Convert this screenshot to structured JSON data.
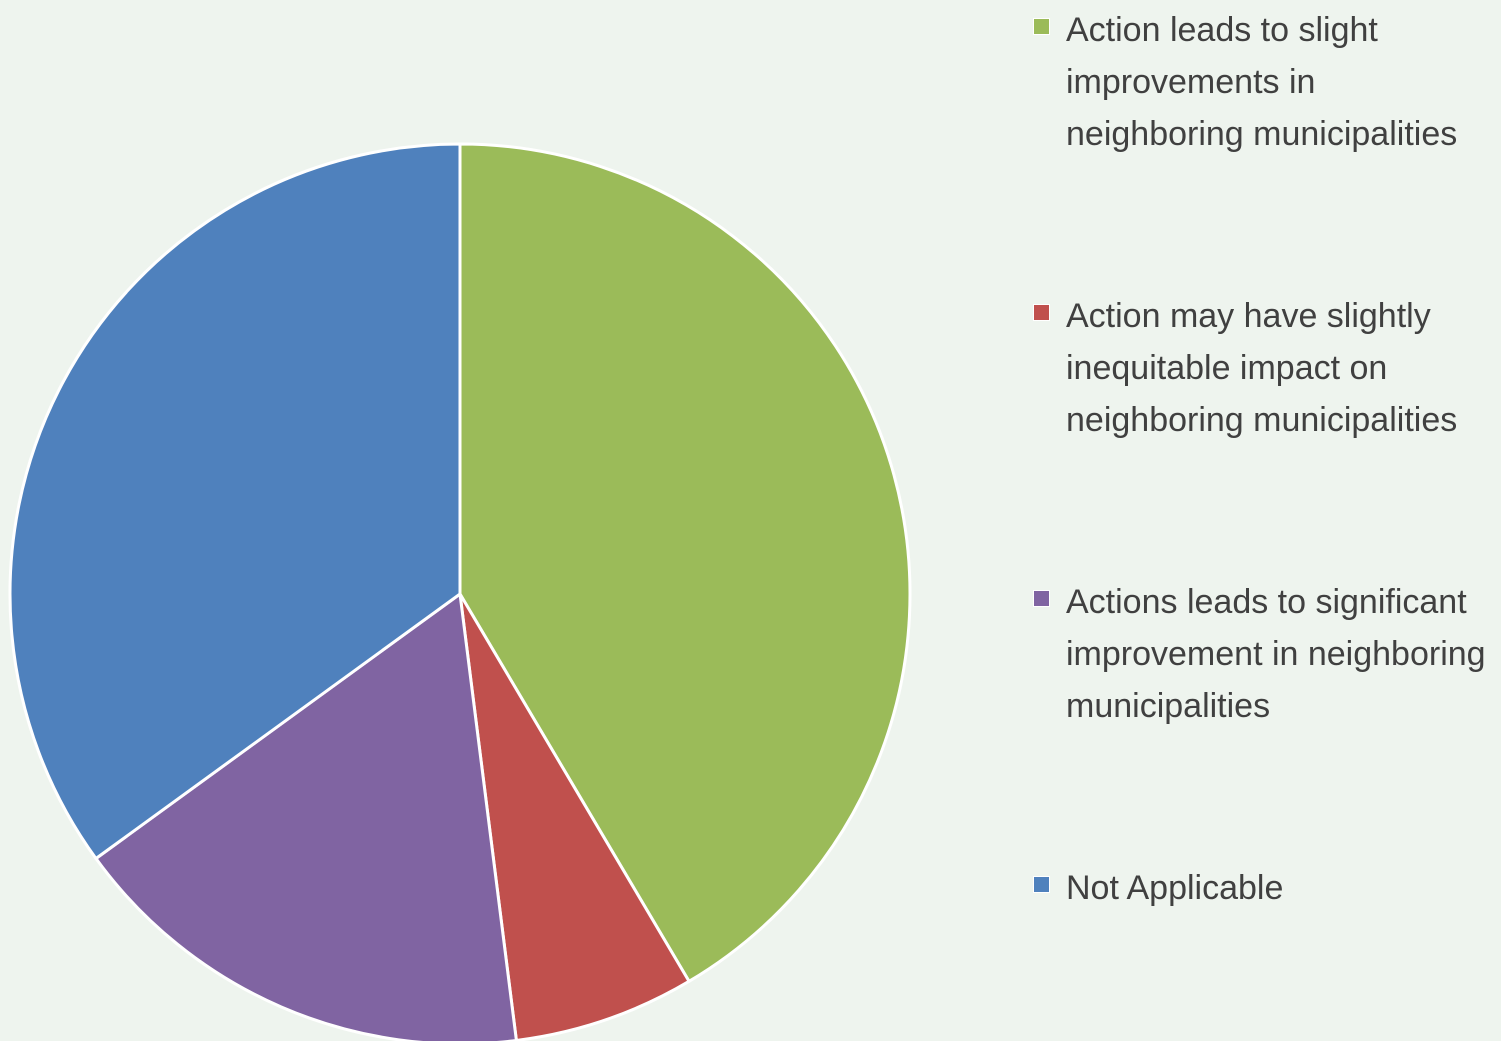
{
  "chart_data": {
    "type": "pie",
    "categories": [
      "Action leads to slight improvements in neighboring municipalities",
      "Action may have slightly inequitable impact on neighboring municipalities",
      "Actions leads to significant improvement in neighboring municipalities",
      "Not Applicable"
    ],
    "values": [
      41.5,
      6.5,
      17,
      35
    ],
    "colors": [
      "#9bbb59",
      "#c0504d",
      "#8064a2",
      "#4f81bd"
    ],
    "legend": "right"
  }
}
